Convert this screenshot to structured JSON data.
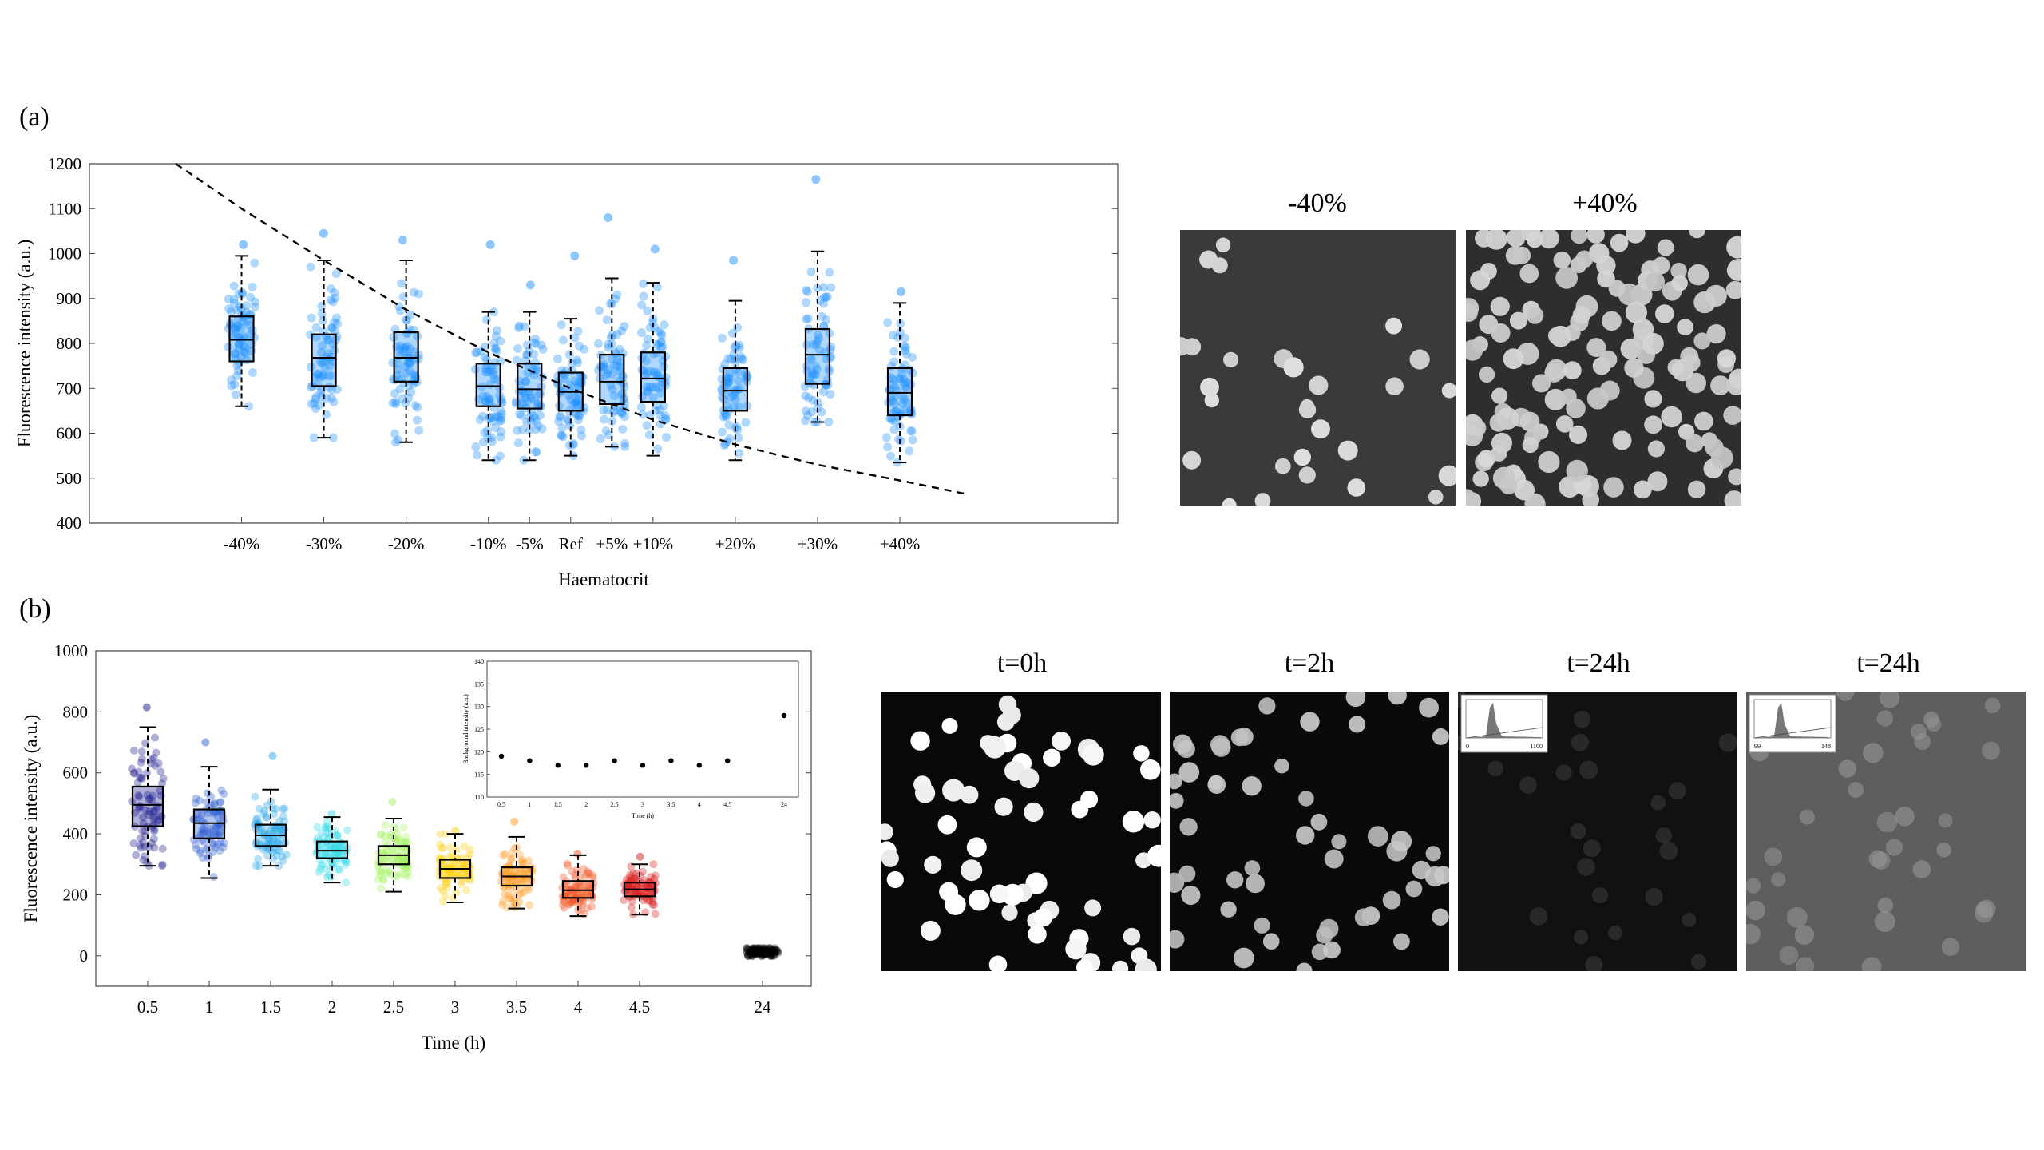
{
  "panel_labels": {
    "a": "(a)",
    "b": "(b)"
  },
  "colors": {
    "panel_a_points": "#1e90ff",
    "curve": "#000000",
    "panel_b_boxes": [
      "#1a1a8c",
      "#2d5fd0",
      "#2ba7ea",
      "#39d9e8",
      "#a6f060",
      "#ffd21a",
      "#ff9a22",
      "#f05a28",
      "#d81e1e",
      "#000000"
    ]
  },
  "chart_data": [
    {
      "type": "box",
      "id": "haematocrit",
      "xlabel": "Haematocrit",
      "ylabel": "Fluorescence intensity (a.u.)",
      "ylim": [
        400,
        1200
      ],
      "yticks": [
        400,
        500,
        600,
        700,
        800,
        900,
        1000,
        1100,
        1200
      ],
      "categories": [
        "-40%",
        "-30%",
        "-20%",
        "-10%",
        "-5%",
        "Ref",
        "+5%",
        "+10%",
        "+20%",
        "+30%",
        "+40%"
      ],
      "category_x": [
        -40,
        -30,
        -20,
        -10,
        -5,
        0,
        5,
        10,
        20,
        30,
        40
      ],
      "boxes": [
        {
          "q1": 760,
          "median": 808,
          "q3": 860,
          "whisker_low": 660,
          "whisker_high": 995,
          "outliers": [
            1020
          ]
        },
        {
          "q1": 705,
          "median": 768,
          "q3": 820,
          "whisker_low": 590,
          "whisker_high": 985,
          "outliers": [
            1045
          ]
        },
        {
          "q1": 715,
          "median": 768,
          "q3": 825,
          "whisker_low": 580,
          "whisker_high": 985,
          "outliers": [
            1030
          ]
        },
        {
          "q1": 660,
          "median": 705,
          "q3": 755,
          "whisker_low": 540,
          "whisker_high": 870,
          "outliers": [
            1020
          ]
        },
        {
          "q1": 655,
          "median": 698,
          "q3": 755,
          "whisker_low": 540,
          "whisker_high": 870,
          "outliers": [
            930
          ]
        },
        {
          "q1": 650,
          "median": 692,
          "q3": 735,
          "whisker_low": 550,
          "whisker_high": 855,
          "outliers": [
            995
          ]
        },
        {
          "q1": 665,
          "median": 715,
          "q3": 775,
          "whisker_low": 570,
          "whisker_high": 945,
          "outliers": [
            1080
          ]
        },
        {
          "q1": 670,
          "median": 722,
          "q3": 780,
          "whisker_low": 550,
          "whisker_high": 935,
          "outliers": [
            1010
          ]
        },
        {
          "q1": 650,
          "median": 695,
          "q3": 745,
          "whisker_low": 540,
          "whisker_high": 895,
          "outliers": [
            985
          ]
        },
        {
          "q1": 710,
          "median": 775,
          "q3": 832,
          "whisker_low": 625,
          "whisker_high": 1005,
          "outliers": [
            1165
          ]
        },
        {
          "q1": 640,
          "median": 690,
          "q3": 745,
          "whisker_low": 535,
          "whisker_high": 890,
          "outliers": [
            915
          ]
        }
      ],
      "curve": {
        "style": "dashed",
        "x": [
          -48,
          -40,
          -30,
          -20,
          -10,
          0,
          10,
          20,
          30,
          40,
          48
        ],
        "y": [
          1200,
          1100,
          985,
          875,
          780,
          700,
          630,
          575,
          530,
          495,
          465
        ]
      }
    },
    {
      "type": "box",
      "id": "time",
      "xlabel": "Time (h)",
      "ylabel": "Fluorescence intensity (a.u.)",
      "ylim": [
        -100,
        1000
      ],
      "yticks": [
        0,
        200,
        400,
        600,
        800,
        1000
      ],
      "categories": [
        "0.5",
        "1",
        "1.5",
        "2",
        "2.5",
        "3",
        "3.5",
        "4",
        "4.5",
        "24"
      ],
      "boxes": [
        {
          "q1": 425,
          "median": 495,
          "q3": 555,
          "whisker_low": 295,
          "whisker_high": 750,
          "outliers": [
            815
          ]
        },
        {
          "q1": 385,
          "median": 435,
          "q3": 480,
          "whisker_low": 255,
          "whisker_high": 620,
          "outliers": [
            700
          ]
        },
        {
          "q1": 360,
          "median": 395,
          "q3": 430,
          "whisker_low": 295,
          "whisker_high": 545,
          "outliers": [
            655
          ]
        },
        {
          "q1": 320,
          "median": 345,
          "q3": 375,
          "whisker_low": 240,
          "whisker_high": 455,
          "outliers": [
            465
          ]
        },
        {
          "q1": 300,
          "median": 330,
          "q3": 360,
          "whisker_low": 210,
          "whisker_high": 450,
          "outliers": [
            505
          ]
        },
        {
          "q1": 255,
          "median": 285,
          "q3": 315,
          "whisker_low": 175,
          "whisker_high": 400,
          "outliers": [
            410
          ]
        },
        {
          "q1": 230,
          "median": 260,
          "q3": 290,
          "whisker_low": 155,
          "whisker_high": 390,
          "outliers": [
            440
          ]
        },
        {
          "q1": 190,
          "median": 215,
          "q3": 245,
          "whisker_low": 130,
          "whisker_high": 330,
          "outliers": [
            335
          ]
        },
        {
          "q1": 195,
          "median": 218,
          "q3": 240,
          "whisker_low": 135,
          "whisker_high": 300,
          "outliers": [
            325
          ]
        },
        {
          "q1": 5,
          "median": 12,
          "q3": 18,
          "whisker_low": 0,
          "whisker_high": 25,
          "outliers": []
        }
      ]
    },
    {
      "type": "scatter",
      "id": "inset-background",
      "xlabel": "Time (h)",
      "ylabel": "Background intensity (a.u.)",
      "ylim": [
        110,
        140
      ],
      "yticks": [
        110,
        115,
        120,
        125,
        130,
        135,
        140
      ],
      "categories": [
        "0.5",
        "1",
        "1.5",
        "2",
        "2.5",
        "3",
        "3.5",
        "4",
        "4.5",
        "24"
      ],
      "values": [
        119,
        118,
        117,
        117,
        118,
        117,
        118,
        117,
        118,
        128
      ]
    }
  ],
  "micrographs_a": [
    {
      "title": "-40%",
      "background": "#3a3a3a",
      "density": "sparse"
    },
    {
      "title": "+40%",
      "background": "#2e2e2e",
      "density": "dense"
    }
  ],
  "micrographs_b": [
    {
      "title": "t=0h",
      "background": "#080808",
      "brightness": 0.95
    },
    {
      "title": "t=2h",
      "background": "#0a0a0a",
      "brightness": 0.65
    },
    {
      "title": "t=24h",
      "background": "#111111",
      "brightness": 0.05,
      "histogram_labels": [
        "0",
        "1100"
      ]
    },
    {
      "title": "t=24h",
      "background": "#5e5e5e",
      "brightness": 0.75,
      "histogram_labels": [
        "99",
        "148"
      ]
    }
  ]
}
